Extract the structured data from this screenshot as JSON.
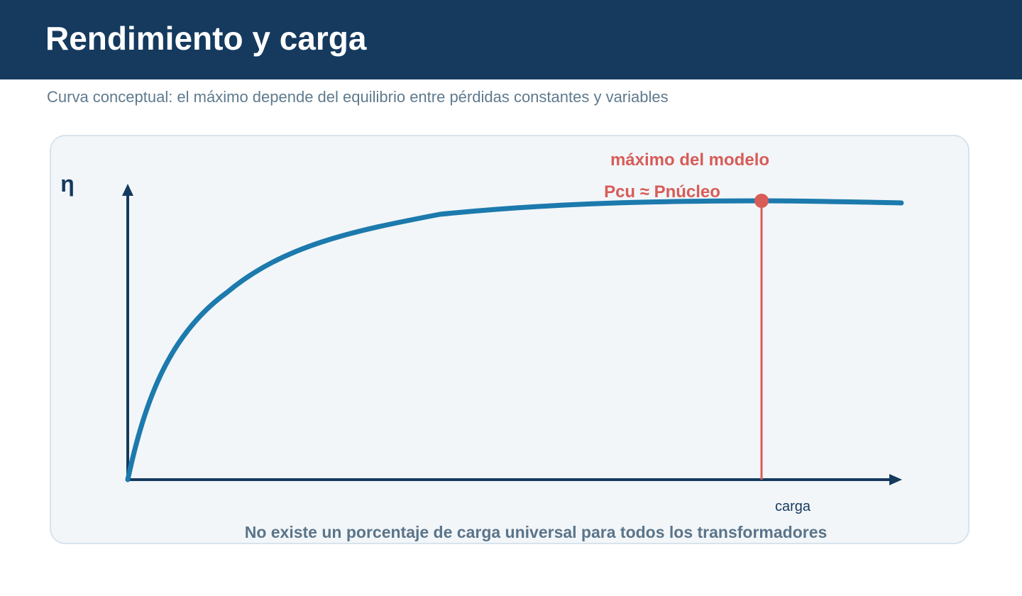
{
  "header": {
    "title": "Rendimiento y carga"
  },
  "subtitle": "Curva conceptual: el máximo depende del equilibrio entre pérdidas constantes y variables",
  "diagram": {
    "y_axis_label": "η",
    "x_axis_label": "carga",
    "annotation_title": "máximo del modelo",
    "annotation_condition": "Pcu ≈ Pnúcleo",
    "colors": {
      "axis": "#153a5e",
      "curve": "#1c7aad",
      "highlight": "#d85c57"
    }
  },
  "footer_note": "No existe un porcentaje de carga universal para todos los transformadores"
}
